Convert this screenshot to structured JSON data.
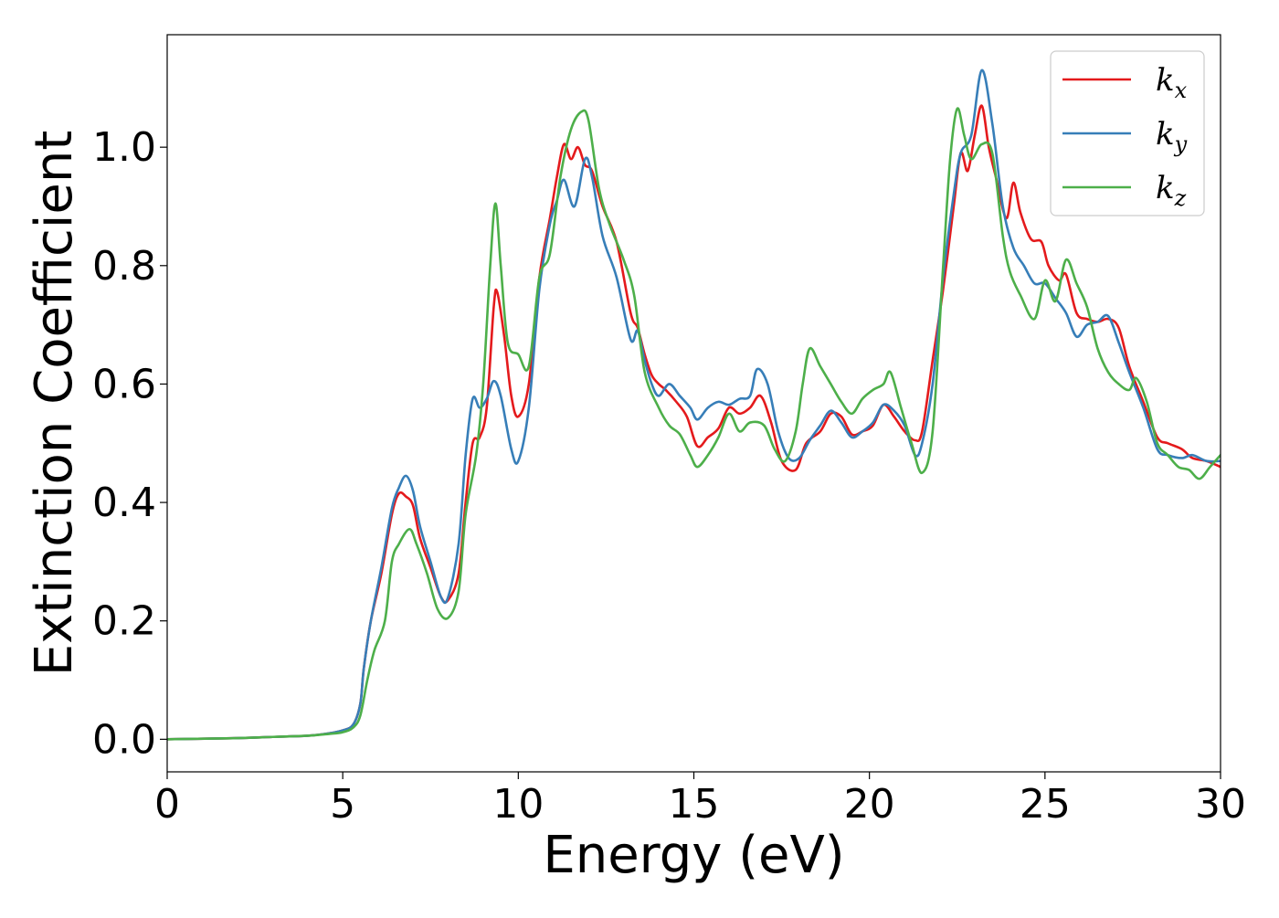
{
  "chart_data": {
    "type": "line",
    "title": "",
    "xlabel": "Energy (eV)",
    "ylabel": "Extinction Coefficient",
    "xlim": [
      0,
      30
    ],
    "ylim": [
      -0.055,
      1.19
    ],
    "xticks": [
      0,
      5,
      10,
      15,
      20,
      25,
      30
    ],
    "xtick_labels": [
      "0",
      "5",
      "10",
      "15",
      "20",
      "25",
      "30"
    ],
    "yticks": [
      0.0,
      0.2,
      0.4,
      0.6,
      0.8,
      1.0
    ],
    "ytick_labels": [
      "0.0",
      "0.2",
      "0.4",
      "0.6",
      "0.8",
      "1.0"
    ],
    "grid": false,
    "legend_position": "top-right",
    "series": [
      {
        "name": "k_x",
        "legend_base": "k",
        "legend_sub": "x",
        "color": "#e41a1c",
        "points": [
          [
            0,
            0
          ],
          [
            2,
            0.002
          ],
          [
            3,
            0.004
          ],
          [
            4,
            0.006
          ],
          [
            4.6,
            0.01
          ],
          [
            5,
            0.015
          ],
          [
            5.3,
            0.025
          ],
          [
            5.5,
            0.06
          ],
          [
            5.6,
            0.12
          ],
          [
            5.8,
            0.2
          ],
          [
            6.1,
            0.28
          ],
          [
            6.4,
            0.38
          ],
          [
            6.6,
            0.415
          ],
          [
            6.8,
            0.41
          ],
          [
            7.0,
            0.395
          ],
          [
            7.2,
            0.34
          ],
          [
            7.5,
            0.29
          ],
          [
            7.8,
            0.24
          ],
          [
            8.0,
            0.235
          ],
          [
            8.3,
            0.28
          ],
          [
            8.5,
            0.4
          ],
          [
            8.7,
            0.5
          ],
          [
            8.9,
            0.51
          ],
          [
            9.1,
            0.56
          ],
          [
            9.3,
            0.73
          ],
          [
            9.4,
            0.755
          ],
          [
            9.6,
            0.68
          ],
          [
            9.8,
            0.58
          ],
          [
            10.0,
            0.545
          ],
          [
            10.3,
            0.6
          ],
          [
            10.6,
            0.78
          ],
          [
            10.9,
            0.88
          ],
          [
            11.1,
            0.95
          ],
          [
            11.3,
            1.005
          ],
          [
            11.5,
            0.98
          ],
          [
            11.7,
            1.0
          ],
          [
            11.9,
            0.97
          ],
          [
            12.1,
            0.96
          ],
          [
            12.4,
            0.9
          ],
          [
            12.8,
            0.84
          ],
          [
            13.2,
            0.72
          ],
          [
            13.4,
            0.695
          ],
          [
            13.6,
            0.65
          ],
          [
            13.8,
            0.615
          ],
          [
            14.0,
            0.6
          ],
          [
            14.2,
            0.59
          ],
          [
            14.5,
            0.57
          ],
          [
            14.8,
            0.545
          ],
          [
            15.1,
            0.495
          ],
          [
            15.4,
            0.51
          ],
          [
            15.7,
            0.525
          ],
          [
            16.0,
            0.56
          ],
          [
            16.3,
            0.55
          ],
          [
            16.6,
            0.56
          ],
          [
            16.9,
            0.58
          ],
          [
            17.2,
            0.535
          ],
          [
            17.5,
            0.47
          ],
          [
            17.9,
            0.455
          ],
          [
            18.2,
            0.5
          ],
          [
            18.6,
            0.52
          ],
          [
            18.9,
            0.55
          ],
          [
            19.2,
            0.545
          ],
          [
            19.5,
            0.515
          ],
          [
            19.8,
            0.52
          ],
          [
            20.1,
            0.53
          ],
          [
            20.4,
            0.565
          ],
          [
            20.7,
            0.545
          ],
          [
            21.0,
            0.52
          ],
          [
            21.3,
            0.505
          ],
          [
            21.5,
            0.52
          ],
          [
            21.8,
            0.64
          ],
          [
            22.1,
            0.76
          ],
          [
            22.4,
            0.9
          ],
          [
            22.6,
            0.99
          ],
          [
            22.8,
            0.96
          ],
          [
            23.0,
            1.02
          ],
          [
            23.2,
            1.07
          ],
          [
            23.4,
            1.0
          ],
          [
            23.6,
            0.95
          ],
          [
            23.9,
            0.88
          ],
          [
            24.1,
            0.94
          ],
          [
            24.3,
            0.89
          ],
          [
            24.6,
            0.845
          ],
          [
            24.9,
            0.84
          ],
          [
            25.1,
            0.8
          ],
          [
            25.4,
            0.775
          ],
          [
            25.6,
            0.785
          ],
          [
            25.9,
            0.72
          ],
          [
            26.2,
            0.71
          ],
          [
            26.5,
            0.705
          ],
          [
            26.8,
            0.71
          ],
          [
            27.1,
            0.695
          ],
          [
            27.4,
            0.63
          ],
          [
            27.8,
            0.57
          ],
          [
            28.2,
            0.51
          ],
          [
            28.5,
            0.5
          ],
          [
            28.9,
            0.49
          ],
          [
            29.2,
            0.475
          ],
          [
            29.6,
            0.47
          ],
          [
            30,
            0.46
          ]
        ]
      },
      {
        "name": "k_y",
        "legend_base": "k",
        "legend_sub": "y",
        "color": "#377eb8",
        "points": [
          [
            0,
            0
          ],
          [
            2,
            0.002
          ],
          [
            3,
            0.004
          ],
          [
            4,
            0.006
          ],
          [
            4.6,
            0.01
          ],
          [
            5,
            0.015
          ],
          [
            5.3,
            0.025
          ],
          [
            5.5,
            0.06
          ],
          [
            5.6,
            0.12
          ],
          [
            5.8,
            0.2
          ],
          [
            6.1,
            0.29
          ],
          [
            6.4,
            0.39
          ],
          [
            6.6,
            0.425
          ],
          [
            6.8,
            0.445
          ],
          [
            7.0,
            0.42
          ],
          [
            7.2,
            0.36
          ],
          [
            7.5,
            0.3
          ],
          [
            7.8,
            0.24
          ],
          [
            8.0,
            0.24
          ],
          [
            8.3,
            0.33
          ],
          [
            8.5,
            0.48
          ],
          [
            8.7,
            0.575
          ],
          [
            8.9,
            0.56
          ],
          [
            9.1,
            0.575
          ],
          [
            9.3,
            0.605
          ],
          [
            9.5,
            0.58
          ],
          [
            9.8,
            0.49
          ],
          [
            10.0,
            0.47
          ],
          [
            10.3,
            0.56
          ],
          [
            10.6,
            0.76
          ],
          [
            10.9,
            0.87
          ],
          [
            11.1,
            0.91
          ],
          [
            11.3,
            0.945
          ],
          [
            11.6,
            0.9
          ],
          [
            11.9,
            0.98
          ],
          [
            12.1,
            0.95
          ],
          [
            12.4,
            0.85
          ],
          [
            12.8,
            0.78
          ],
          [
            13.2,
            0.675
          ],
          [
            13.4,
            0.69
          ],
          [
            13.6,
            0.64
          ],
          [
            13.8,
            0.6
          ],
          [
            14.0,
            0.58
          ],
          [
            14.3,
            0.6
          ],
          [
            14.6,
            0.58
          ],
          [
            14.9,
            0.56
          ],
          [
            15.1,
            0.54
          ],
          [
            15.4,
            0.56
          ],
          [
            15.7,
            0.57
          ],
          [
            16.0,
            0.565
          ],
          [
            16.3,
            0.575
          ],
          [
            16.6,
            0.58
          ],
          [
            16.8,
            0.625
          ],
          [
            17.1,
            0.6
          ],
          [
            17.4,
            0.52
          ],
          [
            17.7,
            0.475
          ],
          [
            18.0,
            0.475
          ],
          [
            18.3,
            0.505
          ],
          [
            18.6,
            0.53
          ],
          [
            18.9,
            0.555
          ],
          [
            19.2,
            0.535
          ],
          [
            19.5,
            0.51
          ],
          [
            19.8,
            0.52
          ],
          [
            20.1,
            0.535
          ],
          [
            20.4,
            0.565
          ],
          [
            20.7,
            0.555
          ],
          [
            21.0,
            0.53
          ],
          [
            21.3,
            0.48
          ],
          [
            21.5,
            0.5
          ],
          [
            21.8,
            0.6
          ],
          [
            22.1,
            0.78
          ],
          [
            22.4,
            0.92
          ],
          [
            22.6,
            0.99
          ],
          [
            22.9,
            1.02
          ],
          [
            23.2,
            1.13
          ],
          [
            23.5,
            1.04
          ],
          [
            23.8,
            0.9
          ],
          [
            24.1,
            0.83
          ],
          [
            24.4,
            0.8
          ],
          [
            24.7,
            0.77
          ],
          [
            25.0,
            0.77
          ],
          [
            25.3,
            0.745
          ],
          [
            25.6,
            0.72
          ],
          [
            25.9,
            0.68
          ],
          [
            26.2,
            0.7
          ],
          [
            26.5,
            0.705
          ],
          [
            26.8,
            0.715
          ],
          [
            27.1,
            0.67
          ],
          [
            27.4,
            0.62
          ],
          [
            27.8,
            0.56
          ],
          [
            28.2,
            0.49
          ],
          [
            28.5,
            0.48
          ],
          [
            28.9,
            0.475
          ],
          [
            29.2,
            0.48
          ],
          [
            29.6,
            0.47
          ],
          [
            30,
            0.47
          ]
        ]
      },
      {
        "name": "k_z",
        "legend_base": "k",
        "legend_sub": "z",
        "color": "#4daf4a",
        "points": [
          [
            0,
            0
          ],
          [
            2,
            0.002
          ],
          [
            3,
            0.004
          ],
          [
            4,
            0.006
          ],
          [
            4.6,
            0.009
          ],
          [
            5,
            0.012
          ],
          [
            5.3,
            0.02
          ],
          [
            5.5,
            0.04
          ],
          [
            5.7,
            0.1
          ],
          [
            5.9,
            0.15
          ],
          [
            6.2,
            0.2
          ],
          [
            6.4,
            0.3
          ],
          [
            6.6,
            0.33
          ],
          [
            6.9,
            0.355
          ],
          [
            7.1,
            0.33
          ],
          [
            7.4,
            0.28
          ],
          [
            7.7,
            0.22
          ],
          [
            8.0,
            0.205
          ],
          [
            8.3,
            0.25
          ],
          [
            8.5,
            0.38
          ],
          [
            8.8,
            0.48
          ],
          [
            9.0,
            0.6
          ],
          [
            9.2,
            0.8
          ],
          [
            9.35,
            0.905
          ],
          [
            9.5,
            0.8
          ],
          [
            9.7,
            0.67
          ],
          [
            10.0,
            0.65
          ],
          [
            10.3,
            0.63
          ],
          [
            10.6,
            0.78
          ],
          [
            10.9,
            0.82
          ],
          [
            11.2,
            0.95
          ],
          [
            11.5,
            1.03
          ],
          [
            11.8,
            1.06
          ],
          [
            12.0,
            1.045
          ],
          [
            12.3,
            0.93
          ],
          [
            12.6,
            0.87
          ],
          [
            13.0,
            0.81
          ],
          [
            13.3,
            0.75
          ],
          [
            13.6,
            0.62
          ],
          [
            14.0,
            0.56
          ],
          [
            14.3,
            0.53
          ],
          [
            14.6,
            0.515
          ],
          [
            14.9,
            0.48
          ],
          [
            15.1,
            0.46
          ],
          [
            15.4,
            0.48
          ],
          [
            15.7,
            0.51
          ],
          [
            16.0,
            0.55
          ],
          [
            16.3,
            0.52
          ],
          [
            16.6,
            0.535
          ],
          [
            17.0,
            0.53
          ],
          [
            17.3,
            0.49
          ],
          [
            17.6,
            0.47
          ],
          [
            17.9,
            0.52
          ],
          [
            18.1,
            0.6
          ],
          [
            18.3,
            0.66
          ],
          [
            18.6,
            0.63
          ],
          [
            18.9,
            0.6
          ],
          [
            19.2,
            0.57
          ],
          [
            19.5,
            0.55
          ],
          [
            19.8,
            0.575
          ],
          [
            20.1,
            0.59
          ],
          [
            20.4,
            0.6
          ],
          [
            20.6,
            0.62
          ],
          [
            20.9,
            0.56
          ],
          [
            21.2,
            0.5
          ],
          [
            21.5,
            0.45
          ],
          [
            21.8,
            0.52
          ],
          [
            22.1,
            0.8
          ],
          [
            22.3,
            0.98
          ],
          [
            22.5,
            1.065
          ],
          [
            22.7,
            1.02
          ],
          [
            22.9,
            0.98
          ],
          [
            23.2,
            1.005
          ],
          [
            23.5,
            0.99
          ],
          [
            23.8,
            0.85
          ],
          [
            24.0,
            0.79
          ],
          [
            24.3,
            0.75
          ],
          [
            24.7,
            0.71
          ],
          [
            25.0,
            0.775
          ],
          [
            25.3,
            0.74
          ],
          [
            25.6,
            0.81
          ],
          [
            25.9,
            0.77
          ],
          [
            26.2,
            0.73
          ],
          [
            26.5,
            0.66
          ],
          [
            26.8,
            0.62
          ],
          [
            27.1,
            0.6
          ],
          [
            27.4,
            0.59
          ],
          [
            27.6,
            0.61
          ],
          [
            27.9,
            0.57
          ],
          [
            28.2,
            0.5
          ],
          [
            28.5,
            0.48
          ],
          [
            28.8,
            0.46
          ],
          [
            29.1,
            0.455
          ],
          [
            29.4,
            0.44
          ],
          [
            29.7,
            0.46
          ],
          [
            30,
            0.48
          ]
        ]
      }
    ]
  }
}
